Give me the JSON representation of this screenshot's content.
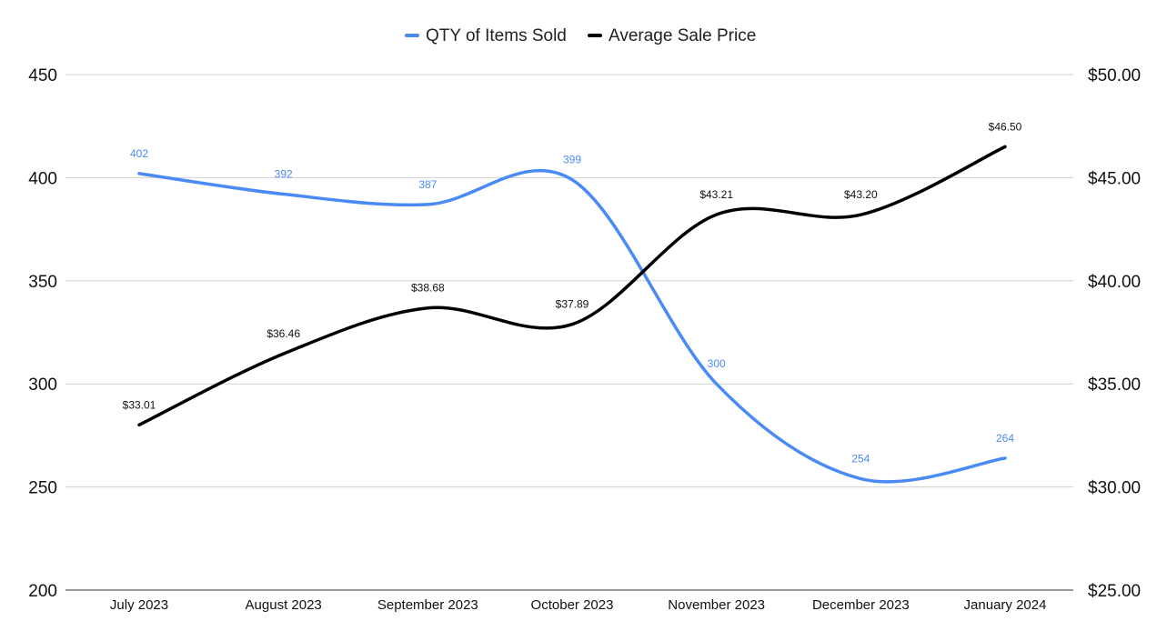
{
  "chart_data": {
    "type": "line",
    "smooth": true,
    "categories": [
      "July 2023",
      "August 2023",
      "September 2023",
      "October 2023",
      "November 2023",
      "December 2023",
      "January 2024"
    ],
    "series": [
      {
        "name": "QTY of Items Sold",
        "axis": "left",
        "color": "#4a8af4",
        "values": [
          402,
          392,
          387,
          399,
          300,
          254,
          264
        ],
        "labels": [
          "402",
          "392",
          "387",
          "399",
          "300",
          "254",
          "264"
        ]
      },
      {
        "name": "Average Sale Price",
        "axis": "right",
        "color": "#000000",
        "values": [
          33.01,
          36.46,
          38.68,
          37.89,
          43.21,
          43.2,
          46.5
        ],
        "labels": [
          "$33.01",
          "$36.46",
          "$38.68",
          "$37.89",
          "$43.21",
          "$43.20",
          "$46.50"
        ]
      }
    ],
    "left_axis": {
      "ylim": [
        200,
        450
      ],
      "ticks": [
        "200",
        "250",
        "300",
        "350",
        "400",
        "450"
      ]
    },
    "right_axis": {
      "ylim": [
        25,
        50
      ],
      "ticks": [
        "$25.00",
        "$30.00",
        "$35.00",
        "$40.00",
        "$45.00",
        "$50.00"
      ]
    },
    "grid": true,
    "legend_position": "top-center"
  }
}
